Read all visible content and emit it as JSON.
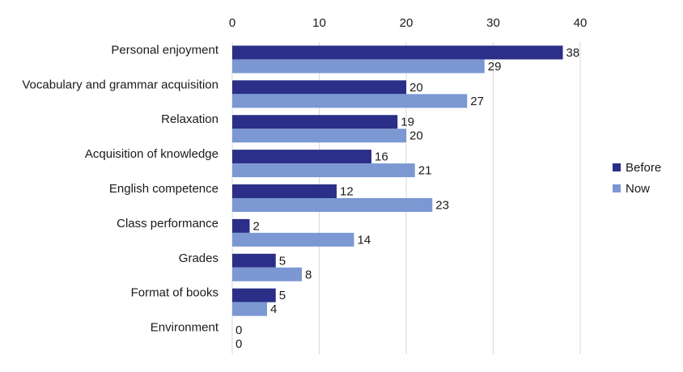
{
  "chart_data": {
    "type": "bar",
    "orientation": "horizontal",
    "categories": [
      "Personal enjoyment",
      "Vocabulary and grammar acquisition",
      "Relaxation",
      "Acquisition of knowledge",
      "English competence",
      "Class performance",
      "Grades",
      "Format of books",
      "Environment"
    ],
    "series": [
      {
        "name": "Before",
        "color": "#2b2f87",
        "values": [
          38,
          20,
          19,
          16,
          12,
          2,
          5,
          5,
          0
        ]
      },
      {
        "name": "Now",
        "color": "#7b98d3",
        "values": [
          29,
          27,
          20,
          21,
          23,
          14,
          8,
          4,
          0
        ]
      }
    ],
    "xlim": [
      0,
      40
    ],
    "xticks": [
      0,
      10,
      20,
      30,
      40
    ],
    "xaxis_position": "top",
    "grid": "vertical",
    "legend_position": "right",
    "data_labels": true
  }
}
